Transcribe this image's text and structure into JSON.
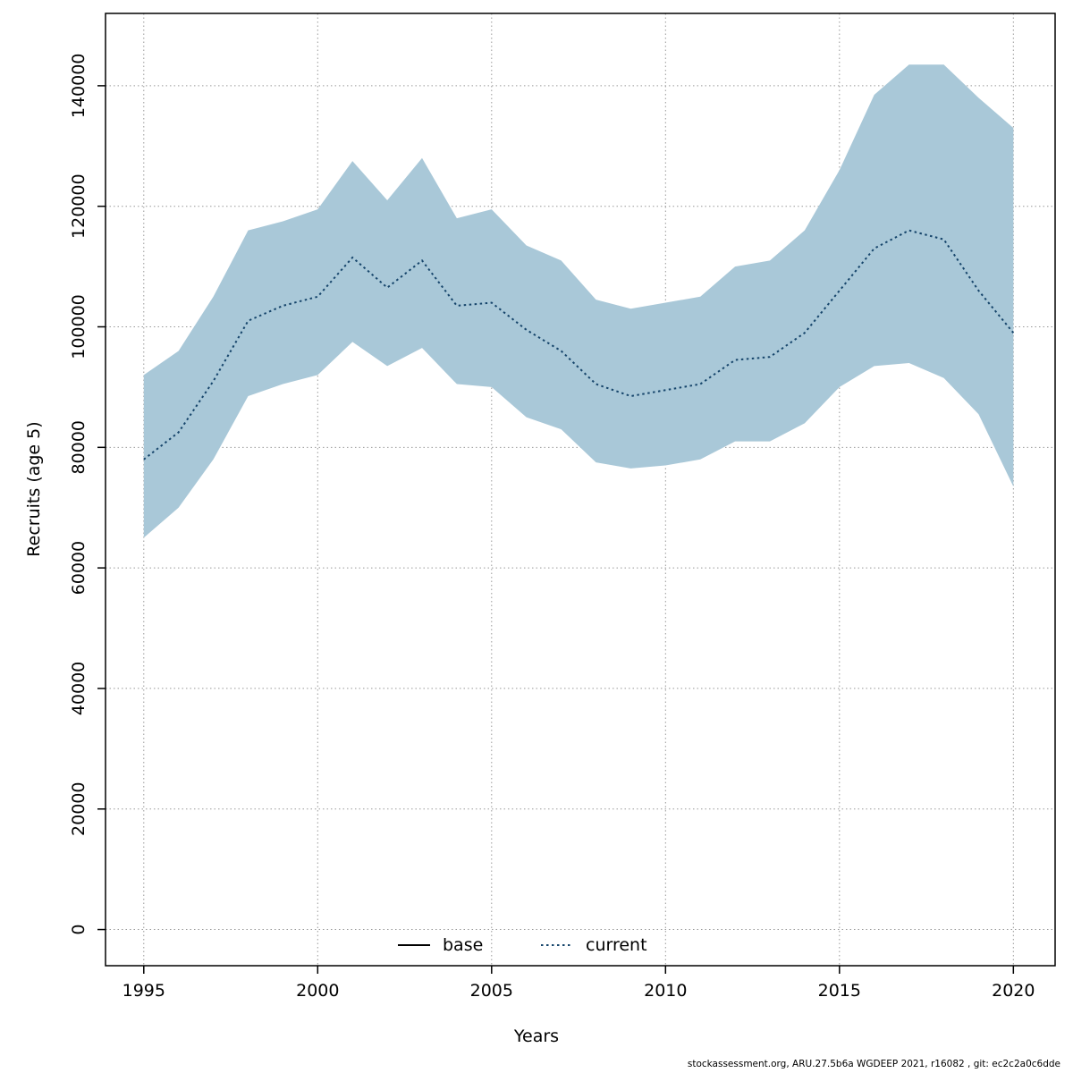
{
  "footer": {
    "text": "stockassessment.org, ARU.27.5b6a  WGDEEP  2021, r16082 , git: ec2c2a0c6dde"
  },
  "chart_data": {
    "type": "line",
    "title": "",
    "xlabel": "Years",
    "ylabel": "Recruits (age 5)",
    "x": [
      1995,
      1996,
      1997,
      1998,
      1999,
      2000,
      2001,
      2002,
      2003,
      2004,
      2005,
      2006,
      2007,
      2008,
      2009,
      2010,
      2011,
      2012,
      2013,
      2014,
      2015,
      2016,
      2017,
      2018,
      2019,
      2020
    ],
    "series": [
      {
        "name": "current",
        "style": "dotted",
        "color": "#16456b",
        "values": [
          78000,
          82500,
          91000,
          101000,
          103500,
          105000,
          111500,
          106500,
          111000,
          103500,
          104000,
          99500,
          96000,
          90500,
          88500,
          89500,
          90500,
          94500,
          95000,
          99000,
          106000,
          113000,
          116000,
          114500,
          106000,
          99000
        ]
      }
    ],
    "band": {
      "color": "#a9c8d8",
      "upper": [
        92000,
        96000,
        105000,
        116000,
        117500,
        119500,
        127500,
        121000,
        128000,
        118000,
        119500,
        113500,
        111000,
        104500,
        103000,
        104000,
        105000,
        110000,
        111000,
        116000,
        126000,
        138500,
        143500,
        143500,
        138000,
        133000
      ],
      "lower": [
        65000,
        70000,
        78000,
        88500,
        90500,
        92000,
        97500,
        93500,
        96500,
        90500,
        90000,
        85000,
        83000,
        77500,
        76500,
        77000,
        78000,
        81000,
        81000,
        84000,
        90000,
        93500,
        94000,
        91500,
        85500,
        73500
      ]
    },
    "legend": [
      {
        "label": "base",
        "style": "solid",
        "color": "#000000"
      },
      {
        "label": "current",
        "style": "dotted",
        "color": "#16456b"
      }
    ],
    "xticks": [
      1995,
      2000,
      2005,
      2010,
      2015,
      2020
    ],
    "yticks": [
      0,
      20000,
      40000,
      60000,
      80000,
      100000,
      120000,
      140000
    ],
    "xlim": [
      1993.9,
      2021.2
    ],
    "ylim": [
      -6000,
      152000
    ],
    "grid": true,
    "legend_position": "bottom-center-inside"
  }
}
